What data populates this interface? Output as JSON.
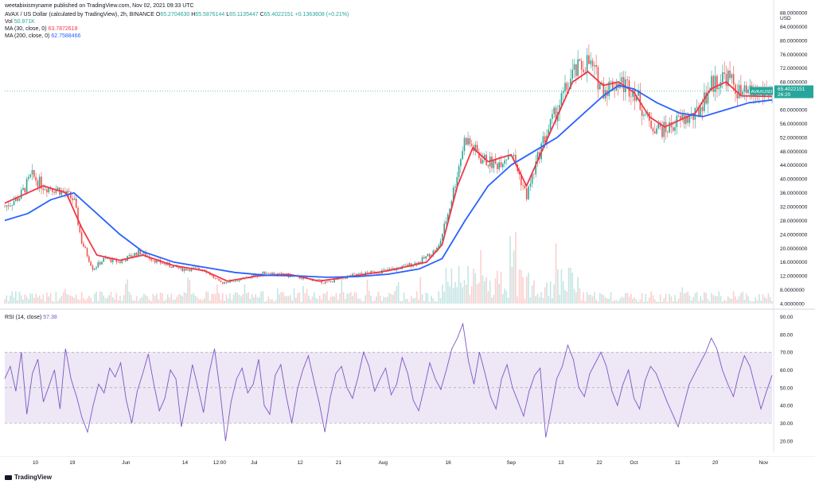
{
  "header": {
    "author_line": "weetabixismyname published on TradingView.com, Nov 02, 2021 09:33 UTC",
    "symbol": "AVAX / US Dollar (calculated by TradingView), 2h, BINANCE",
    "o_label": "O",
    "o_value": "65.2704630",
    "h_label": "H",
    "h_value": "65.5876144",
    "l_label": "L",
    "l_value": "65.1135447",
    "c_label": "C",
    "c_value": "65.4022151",
    "change": "+0.1363608 (+0.21%)",
    "vol_label": "Vol",
    "vol_value": "50.971K",
    "ma30_label": "MA (30, close, 0)",
    "ma30_value": "63.7872618",
    "ma200_label": "MA (200, close, 0)",
    "ma200_value": "62.7588466",
    "rsi_label": "RSI (14, close)",
    "rsi_value": "57.38"
  },
  "price_badge": {
    "symbol": "AVAXUSD",
    "price": "65.4022151",
    "countdown": "26:20"
  },
  "footer": {
    "brand": "TradingView"
  },
  "colors": {
    "up": "#26a69a",
    "down": "#ef5350",
    "ma30": "#f23645",
    "ma200": "#2962ff",
    "rsi": "#7e57c2",
    "rsi_band": "#ede7f6"
  },
  "chart_data": [
    {
      "type": "candlestick",
      "title": "AVAX / US Dollar (calculated by TradingView), 2h, BINANCE",
      "ylabel": "USD",
      "ylim": [
        4,
        88
      ],
      "y_ticks": [
        "4.0000000",
        "8.0000000",
        "12.0000000",
        "16.0000000",
        "20.0000000",
        "24.0000000",
        "28.0000000",
        "32.0000000",
        "36.0000000",
        "40.0000000",
        "44.0000000",
        "48.0000000",
        "52.0000000",
        "56.0000000",
        "60.0000000",
        "64.0000000",
        "68.0000000",
        "72.0000000",
        "76.0000000",
        "80.0000000",
        "84.0000000",
        "88.0000000"
      ],
      "x_tick_labels": [
        "10",
        "19",
        "Jun",
        "14",
        "12:00",
        "Jul",
        "12",
        "21",
        "Aug",
        "16",
        "Sep",
        "13",
        "22",
        "Oct",
        "11",
        "20",
        "Nov"
      ],
      "price_path": [
        {
          "x": 0,
          "y": 32
        },
        {
          "x": 0.02,
          "y": 35
        },
        {
          "x": 0.035,
          "y": 41
        },
        {
          "x": 0.05,
          "y": 38
        },
        {
          "x": 0.07,
          "y": 37
        },
        {
          "x": 0.09,
          "y": 34
        },
        {
          "x": 0.1,
          "y": 22
        },
        {
          "x": 0.115,
          "y": 14
        },
        {
          "x": 0.13,
          "y": 17
        },
        {
          "x": 0.15,
          "y": 16
        },
        {
          "x": 0.175,
          "y": 19
        },
        {
          "x": 0.2,
          "y": 16
        },
        {
          "x": 0.23,
          "y": 14
        },
        {
          "x": 0.26,
          "y": 14
        },
        {
          "x": 0.28,
          "y": 10
        },
        {
          "x": 0.31,
          "y": 11
        },
        {
          "x": 0.34,
          "y": 13
        },
        {
          "x": 0.37,
          "y": 12
        },
        {
          "x": 0.4,
          "y": 11
        },
        {
          "x": 0.42,
          "y": 10
        },
        {
          "x": 0.45,
          "y": 12
        },
        {
          "x": 0.48,
          "y": 13
        },
        {
          "x": 0.51,
          "y": 14
        },
        {
          "x": 0.54,
          "y": 16
        },
        {
          "x": 0.565,
          "y": 20
        },
        {
          "x": 0.58,
          "y": 32
        },
        {
          "x": 0.6,
          "y": 52
        },
        {
          "x": 0.62,
          "y": 46
        },
        {
          "x": 0.64,
          "y": 44
        },
        {
          "x": 0.66,
          "y": 48
        },
        {
          "x": 0.68,
          "y": 35
        },
        {
          "x": 0.7,
          "y": 50
        },
        {
          "x": 0.72,
          "y": 60
        },
        {
          "x": 0.74,
          "y": 70
        },
        {
          "x": 0.76,
          "y": 74
        },
        {
          "x": 0.78,
          "y": 66
        },
        {
          "x": 0.8,
          "y": 68
        },
        {
          "x": 0.82,
          "y": 66
        },
        {
          "x": 0.84,
          "y": 56
        },
        {
          "x": 0.86,
          "y": 54
        },
        {
          "x": 0.88,
          "y": 57
        },
        {
          "x": 0.9,
          "y": 58
        },
        {
          "x": 0.92,
          "y": 67
        },
        {
          "x": 0.94,
          "y": 70
        },
        {
          "x": 0.96,
          "y": 64
        },
        {
          "x": 0.98,
          "y": 65
        },
        {
          "x": 1.0,
          "y": 65.4
        }
      ],
      "series": [
        {
          "name": "MA (30, close, 0)",
          "values": [
            {
              "x": 0,
              "y": 33
            },
            {
              "x": 0.05,
              "y": 38
            },
            {
              "x": 0.08,
              "y": 36
            },
            {
              "x": 0.1,
              "y": 26
            },
            {
              "x": 0.12,
              "y": 18
            },
            {
              "x": 0.15,
              "y": 16.5
            },
            {
              "x": 0.18,
              "y": 18
            },
            {
              "x": 0.22,
              "y": 15
            },
            {
              "x": 0.26,
              "y": 13.5
            },
            {
              "x": 0.29,
              "y": 10.5
            },
            {
              "x": 0.33,
              "y": 12
            },
            {
              "x": 0.37,
              "y": 12.5
            },
            {
              "x": 0.41,
              "y": 10.5
            },
            {
              "x": 0.45,
              "y": 11.8
            },
            {
              "x": 0.5,
              "y": 13.5
            },
            {
              "x": 0.55,
              "y": 16
            },
            {
              "x": 0.57,
              "y": 21
            },
            {
              "x": 0.59,
              "y": 38
            },
            {
              "x": 0.61,
              "y": 49
            },
            {
              "x": 0.63,
              "y": 45
            },
            {
              "x": 0.66,
              "y": 47
            },
            {
              "x": 0.68,
              "y": 38
            },
            {
              "x": 0.7,
              "y": 48
            },
            {
              "x": 0.72,
              "y": 58
            },
            {
              "x": 0.74,
              "y": 68
            },
            {
              "x": 0.76,
              "y": 71
            },
            {
              "x": 0.78,
              "y": 67
            },
            {
              "x": 0.8,
              "y": 68
            },
            {
              "x": 0.82,
              "y": 65
            },
            {
              "x": 0.84,
              "y": 58
            },
            {
              "x": 0.86,
              "y": 55
            },
            {
              "x": 0.88,
              "y": 57
            },
            {
              "x": 0.9,
              "y": 59
            },
            {
              "x": 0.92,
              "y": 66
            },
            {
              "x": 0.94,
              "y": 68
            },
            {
              "x": 0.96,
              "y": 64
            },
            {
              "x": 1.0,
              "y": 63.8
            }
          ]
        },
        {
          "name": "MA (200, close, 0)",
          "values": [
            {
              "x": 0,
              "y": 28
            },
            {
              "x": 0.03,
              "y": 30
            },
            {
              "x": 0.06,
              "y": 34
            },
            {
              "x": 0.09,
              "y": 36
            },
            {
              "x": 0.12,
              "y": 30
            },
            {
              "x": 0.15,
              "y": 24
            },
            {
              "x": 0.18,
              "y": 19
            },
            {
              "x": 0.22,
              "y": 16
            },
            {
              "x": 0.26,
              "y": 14.5
            },
            {
              "x": 0.3,
              "y": 13
            },
            {
              "x": 0.34,
              "y": 12.2
            },
            {
              "x": 0.38,
              "y": 12
            },
            {
              "x": 0.42,
              "y": 11.6
            },
            {
              "x": 0.46,
              "y": 11.8
            },
            {
              "x": 0.5,
              "y": 12.5
            },
            {
              "x": 0.54,
              "y": 14
            },
            {
              "x": 0.57,
              "y": 17
            },
            {
              "x": 0.6,
              "y": 28
            },
            {
              "x": 0.63,
              "y": 38
            },
            {
              "x": 0.66,
              "y": 44
            },
            {
              "x": 0.69,
              "y": 48
            },
            {
              "x": 0.72,
              "y": 52
            },
            {
              "x": 0.75,
              "y": 58
            },
            {
              "x": 0.78,
              "y": 64
            },
            {
              "x": 0.8,
              "y": 67
            },
            {
              "x": 0.82,
              "y": 66
            },
            {
              "x": 0.85,
              "y": 62
            },
            {
              "x": 0.88,
              "y": 59
            },
            {
              "x": 0.91,
              "y": 58
            },
            {
              "x": 0.94,
              "y": 60
            },
            {
              "x": 0.97,
              "y": 62
            },
            {
              "x": 1.0,
              "y": 62.8
            }
          ]
        }
      ]
    },
    {
      "type": "line",
      "title": "RSI (14, close)",
      "ylim": [
        15,
        92
      ],
      "y_ticks": [
        "20.00",
        "30.00",
        "40.00",
        "50.00",
        "60.00",
        "70.00",
        "80.00",
        "90.00"
      ],
      "bands": {
        "upper": 70,
        "middle": 50,
        "lower": 30
      },
      "series": [
        {
          "name": "RSI (14, close)",
          "values": [
            55,
            62,
            48,
            70,
            35,
            58,
            66,
            42,
            51,
            60,
            38,
            72,
            55,
            45,
            33,
            25,
            40,
            52,
            47,
            61,
            56,
            64,
            43,
            30,
            48,
            58,
            69,
            52,
            37,
            44,
            60,
            55,
            28,
            45,
            63,
            50,
            36,
            58,
            72,
            48,
            20,
            42,
            55,
            61,
            47,
            52,
            66,
            40,
            35,
            57,
            63,
            45,
            30,
            49,
            60,
            68,
            54,
            41,
            25,
            45,
            58,
            62,
            50,
            44,
            56,
            70,
            62,
            48,
            55,
            61,
            46,
            52,
            67,
            58,
            43,
            37,
            50,
            64,
            55,
            49,
            60,
            72,
            78,
            86,
            65,
            52,
            70,
            58,
            45,
            38,
            55,
            63,
            50,
            42,
            34,
            48,
            57,
            61,
            22,
            38,
            55,
            62,
            74,
            66,
            50,
            45,
            58,
            64,
            70,
            62,
            48,
            40,
            52,
            60,
            44,
            38,
            54,
            62,
            58,
            50,
            42,
            35,
            28,
            40,
            52,
            58,
            64,
            70,
            78,
            72,
            60,
            52,
            45,
            58,
            68,
            62,
            50,
            38,
            48,
            57
          ]
        }
      ]
    }
  ]
}
